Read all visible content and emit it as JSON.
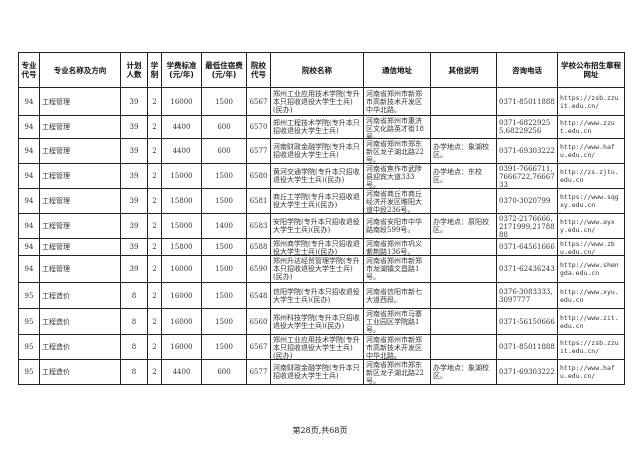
{
  "headers": [
    "专业代号",
    "专业名称及方向",
    "计划人数",
    "学制",
    "学费标准(元/年)",
    "最低住宿费(元/年)",
    "院校代号",
    "院校名称",
    "通信地址",
    "其他说明",
    "咨询电话",
    "学校公布招生章程网址"
  ],
  "rows": [
    {
      "code": "94",
      "major": "工程管理",
      "plan": "39",
      "years": "2",
      "tuition": "16000",
      "dorm": "1500",
      "school_code": "6567",
      "school": "郑州工业应用技术学院(专升本只招收退役大学生士兵)(民办)",
      "address": "河南省郑州市新郑市高新技术开发区中华北路。",
      "note": "",
      "phone": "0371-85011888",
      "url": "https://zsb.zzuit.edu.cn/"
    },
    {
      "code": "94",
      "major": "工程管理",
      "plan": "39",
      "years": "2",
      "tuition": "4400",
      "dorm": "600",
      "school_code": "6570",
      "school": "郑州工程技术学院(专升本只招收退役大学生士兵)",
      "address": "河南省郑州市惠济区文化路英才街18号。",
      "note": "",
      "phone": "0371-68229255,68229256",
      "url": "http://www.zzut.edu.cn"
    },
    {
      "code": "94",
      "major": "工程管理",
      "plan": "39",
      "years": "2",
      "tuition": "4400",
      "dorm": "600",
      "school_code": "6577",
      "school": "河南财政金融学院(专升本只招收退役大学生士兵)",
      "address": "河南省郑州市郑东新区龙子湖北路22号。",
      "note": "办学地点：象湖校区。",
      "phone": "0371-69303222",
      "url": "http://www.hafu.edu.cn/"
    },
    {
      "code": "94",
      "major": "工程管理",
      "plan": "39",
      "years": "2",
      "tuition": "15000",
      "dorm": "1500",
      "school_code": "6580",
      "school": "黄河交通学院(专升本只招收退役大学生士兵)(民办)",
      "address": "河南省焦作市武陟县迎宾大道333号。",
      "note": "办学地点：东校区。",
      "phone": "0391-7666711,7666722,7666733",
      "url": "http://zs.zjtu.edu.cn"
    },
    {
      "code": "94",
      "major": "工程管理",
      "plan": "39",
      "years": "2",
      "tuition": "15800",
      "dorm": "1500",
      "school_code": "6581",
      "school": "商丘工学院(专升本只招收退役大学生士兵)(民办)",
      "address": "河南省商丘市商丘经济开发区睢阳大道中段236号。",
      "note": "",
      "phone": "0370-3020799",
      "url": "https://www.sqgxy.edu.cn"
    },
    {
      "code": "94",
      "major": "工程管理",
      "plan": "39",
      "years": "2",
      "tuition": "15000",
      "dorm": "1400",
      "school_code": "6583",
      "school": "安阳学院(专升本只招收退役大学生士兵)(民办)",
      "address": "河南省安阳市中华路南段599号。",
      "note": "办学地点：原阳校区。",
      "phone": "0372-2176666,2171999,2178888",
      "url": "http://www.ayxy.edu.cn/"
    },
    {
      "code": "94",
      "major": "工程管理",
      "plan": "39",
      "years": "2",
      "tuition": "15800",
      "dorm": "1500",
      "school_code": "6588",
      "school": "郑州商学院(专升本只招收退役大学生士兵)(民办)",
      "address": "河南省郑州市巩义紫荆路136号。",
      "note": "",
      "phone": "0371-64561666",
      "url": "https://www.zbu.edu.cn/"
    },
    {
      "code": "94",
      "major": "工程管理",
      "plan": "39",
      "years": "2",
      "tuition": "16000",
      "dorm": "1500",
      "school_code": "6590",
      "school": "郑州升达经贸管理学院(专升本只招收退役大学生士兵)(民办)",
      "address": "河南省郑州市新郑市龙湖镇文昌路1号。",
      "note": "",
      "phone": "0371-62436243",
      "url": "http://www.shengda.edu.cn"
    },
    {
      "code": "95",
      "major": "工程造价",
      "plan": "8",
      "years": "2",
      "tuition": "16000",
      "dorm": "1500",
      "school_code": "6548",
      "school": "信阳学院(专升本只招收退役大学生士兵)(民办)",
      "address": "河南省信阳市新七大道西段。",
      "note": "",
      "phone": "0376-3083333,3097777",
      "url": "http://www.xyu.edu.cn"
    },
    {
      "code": "95",
      "major": "工程造价",
      "plan": "8",
      "years": "2",
      "tuition": "16000",
      "dorm": "1500",
      "school_code": "6560",
      "school": "郑州科技学院(专升本只招收退役大学生士兵)(民办)",
      "address": "河南省郑州市马寨工业园区学院路1号。",
      "note": "",
      "phone": "0371-56150666",
      "url": "http://www.zit.edu.cn"
    },
    {
      "code": "95",
      "major": "工程造价",
      "plan": "8",
      "years": "2",
      "tuition": "16000",
      "dorm": "1500",
      "school_code": "6567",
      "school": "郑州工业应用技术学院(专升本只招收退役大学生士兵)(民办)",
      "address": "河南省郑州市新郑市高新技术开发区中华北路。",
      "note": "",
      "phone": "0371-85011888",
      "url": "https://zsb.zzuit.edu.cn/"
    },
    {
      "code": "95",
      "major": "工程造价",
      "plan": "8",
      "years": "2",
      "tuition": "4400",
      "dorm": "600",
      "school_code": "6577",
      "school": "河南财政金融学院(专升本只招收退役大学生士兵)",
      "address": "河南省郑州市郑东新区龙子湖北路22号。",
      "note": "办学地点：象湖校区。",
      "phone": "0371-69303222",
      "url": "http://www.hafu.edu.cn/"
    }
  ],
  "footer": "第28页,共68页"
}
